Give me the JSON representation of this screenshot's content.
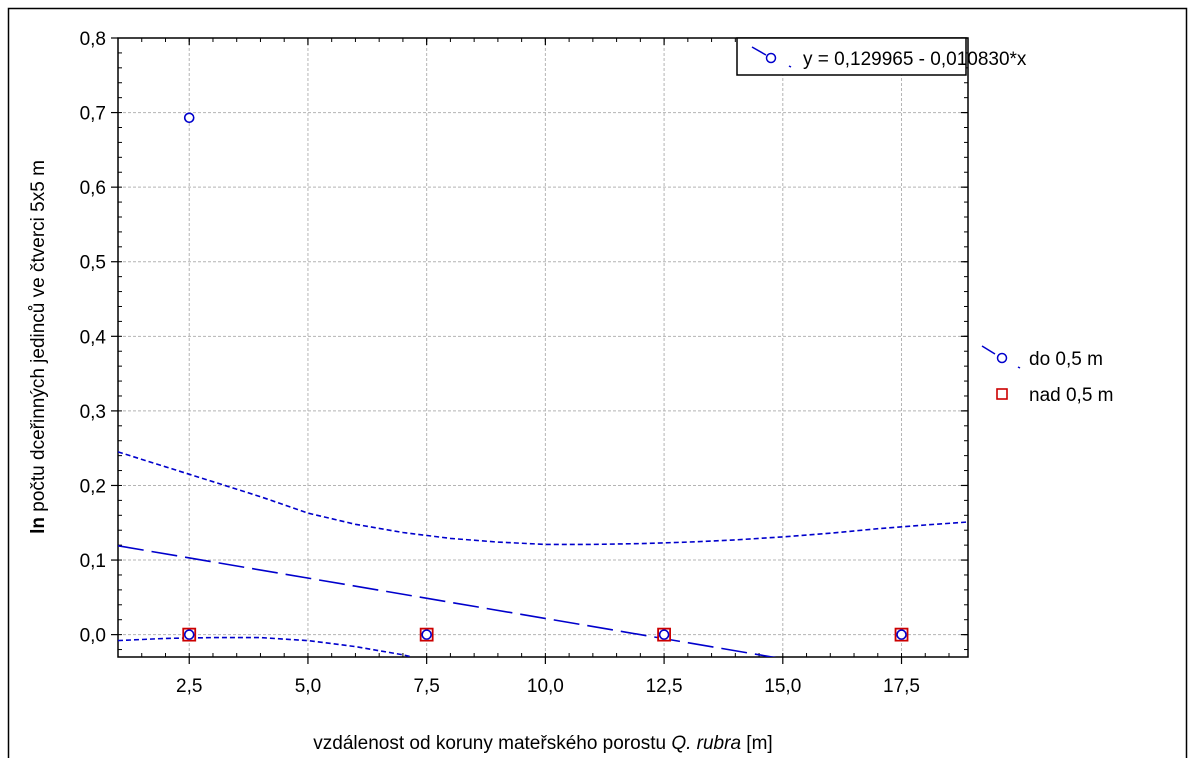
{
  "chart_data": {
    "type": "scatter",
    "xlabel": {
      "prefix": "vzdálenost od koruny mateřského porostu ",
      "italic": "Q. rubra",
      "suffix": " [m]"
    },
    "ylabel": {
      "bold": "ln",
      "rest": " počtu dceřinných jedinců ve čtverci 5x5 m"
    },
    "xlim": [
      1.0,
      18.9
    ],
    "ylim": [
      -0.03,
      0.8
    ],
    "xticks": [
      2.5,
      5.0,
      7.5,
      10.0,
      12.5,
      15.0,
      17.5
    ],
    "xtick_labels": [
      "2,5",
      "5,0",
      "7,5",
      "10,0",
      "12,5",
      "15,0",
      "17,5"
    ],
    "yticks": [
      0.0,
      0.1,
      0.2,
      0.3,
      0.4,
      0.5,
      0.6,
      0.7,
      0.8
    ],
    "ytick_labels": [
      "0,0",
      "0,1",
      "0,2",
      "0,3",
      "0,4",
      "0,5",
      "0,6",
      "0,7",
      "0,8"
    ],
    "grid": true,
    "equation": "y = 0,129965 - 0,010830*x",
    "regression": {
      "intercept": 0.129965,
      "slope": -0.01083
    },
    "confidence_upper": [
      [
        1.0,
        0.245
      ],
      [
        2.0,
        0.225
      ],
      [
        3.0,
        0.205
      ],
      [
        4.0,
        0.185
      ],
      [
        5.0,
        0.163
      ],
      [
        6.0,
        0.148
      ],
      [
        7.0,
        0.137
      ],
      [
        8.0,
        0.129
      ],
      [
        9.0,
        0.124
      ],
      [
        10.0,
        0.121
      ],
      [
        11.0,
        0.121
      ],
      [
        12.0,
        0.122
      ],
      [
        13.0,
        0.124
      ],
      [
        14.0,
        0.127
      ],
      [
        15.0,
        0.131
      ],
      [
        16.0,
        0.136
      ],
      [
        17.0,
        0.142
      ],
      [
        18.0,
        0.147
      ],
      [
        18.9,
        0.151
      ]
    ],
    "confidence_lower": [
      [
        1.0,
        -0.008
      ],
      [
        2.0,
        -0.005
      ],
      [
        3.0,
        -0.004
      ],
      [
        4.0,
        -0.004
      ],
      [
        5.0,
        -0.008
      ],
      [
        6.0,
        -0.016
      ],
      [
        7.0,
        -0.027
      ],
      [
        7.2,
        -0.03
      ]
    ],
    "series": [
      {
        "name": "do 0,5 m",
        "marker": "circle",
        "color": "#0000cc",
        "x": [
          2.5,
          2.5,
          7.5,
          12.5,
          17.5
        ],
        "y": [
          0.693,
          0.0,
          0.0,
          0.0,
          0.0
        ]
      },
      {
        "name": "nad 0,5 m",
        "marker": "square",
        "color": "#cc0000",
        "x": [
          2.5,
          7.5,
          12.5,
          17.5
        ],
        "y": [
          0.0,
          0.0,
          0.0,
          0.0
        ]
      }
    ],
    "legend": {
      "placement": "right"
    }
  }
}
